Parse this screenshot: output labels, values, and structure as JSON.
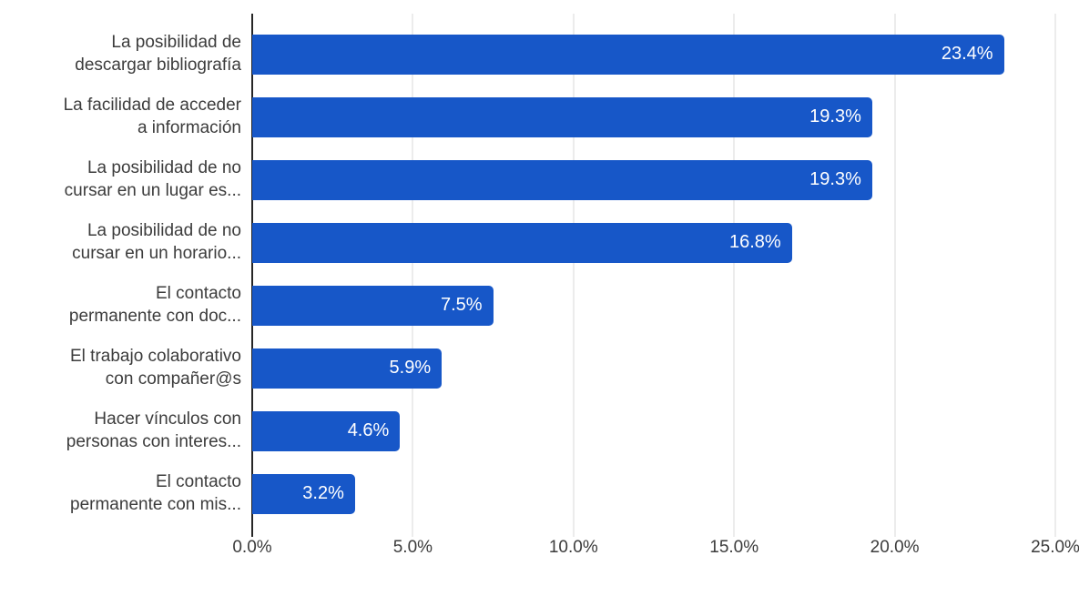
{
  "chart_data": {
    "type": "bar",
    "orientation": "horizontal",
    "grid": true,
    "background_color": "#ffffff",
    "bar_color": "#1757c8",
    "gridline_color": "#d9d9d9",
    "axis_line_color": "#262626",
    "category_label_color": "#3c3c3c",
    "tick_label_color": "#3c3c3c",
    "value_label_color": "#ffffff",
    "xlim": [
      0,
      25
    ],
    "x_tick_values": [
      0,
      5,
      10,
      15,
      20,
      25
    ],
    "x_tick_labels": [
      "0.0%",
      "5.0%",
      "10.0%",
      "15.0%",
      "20.0%",
      "25.0%"
    ],
    "points": [
      {
        "category": "La posibilidad de descargar bibliografía",
        "label_lines": [
          "La posibilidad de",
          "descargar bibliografía"
        ],
        "value": 23.4,
        "value_label": "23.4%"
      },
      {
        "category": "La facilidad de acceder a información",
        "label_lines": [
          "La facilidad de acceder",
          "a información"
        ],
        "value": 19.3,
        "value_label": "19.3%"
      },
      {
        "category": "La posibilidad de no cursar en un lugar es...",
        "label_lines": [
          "La posibilidad de no",
          "cursar en un lugar es..."
        ],
        "value": 19.3,
        "value_label": "19.3%"
      },
      {
        "category": "La posibilidad de no cursar en un horario...",
        "label_lines": [
          "La posibilidad de no",
          "cursar en un horario..."
        ],
        "value": 16.8,
        "value_label": "16.8%"
      },
      {
        "category": "El contacto permanente con doc...",
        "label_lines": [
          "El contacto",
          "permanente con doc..."
        ],
        "value": 7.5,
        "value_label": "7.5%"
      },
      {
        "category": "El trabajo colaborativo con compañer@s",
        "label_lines": [
          "El trabajo colaborativo",
          "con compañer@s"
        ],
        "value": 5.9,
        "value_label": "5.9%"
      },
      {
        "category": "Hacer vínculos con personas con interes...",
        "label_lines": [
          "Hacer vínculos con",
          "personas con interes..."
        ],
        "value": 4.6,
        "value_label": "4.6%"
      },
      {
        "category": "El contacto permanente con mis...",
        "label_lines": [
          "El contacto",
          "permanente con mis..."
        ],
        "value": 3.2,
        "value_label": "3.2%"
      }
    ]
  }
}
